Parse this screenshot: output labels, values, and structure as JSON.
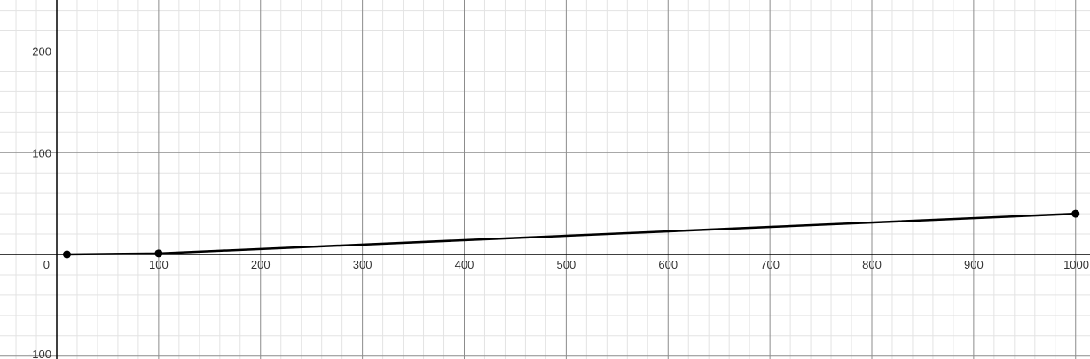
{
  "chart_data": {
    "type": "line",
    "title": "",
    "xlabel": "",
    "ylabel": "",
    "xlim": [
      -65,
      1225
    ],
    "ylim": [
      -102,
      250
    ],
    "grid": true,
    "x_ticks": [
      100,
      200,
      300,
      400,
      500,
      600,
      700,
      800,
      900,
      1000
    ],
    "y_ticks": [
      -100,
      100,
      200
    ],
    "origin_label": "0",
    "series": [
      {
        "x": [
          10,
          100,
          1000
        ],
        "y": [
          0,
          1,
          40
        ],
        "color": "#000000",
        "markers": true
      }
    ]
  }
}
